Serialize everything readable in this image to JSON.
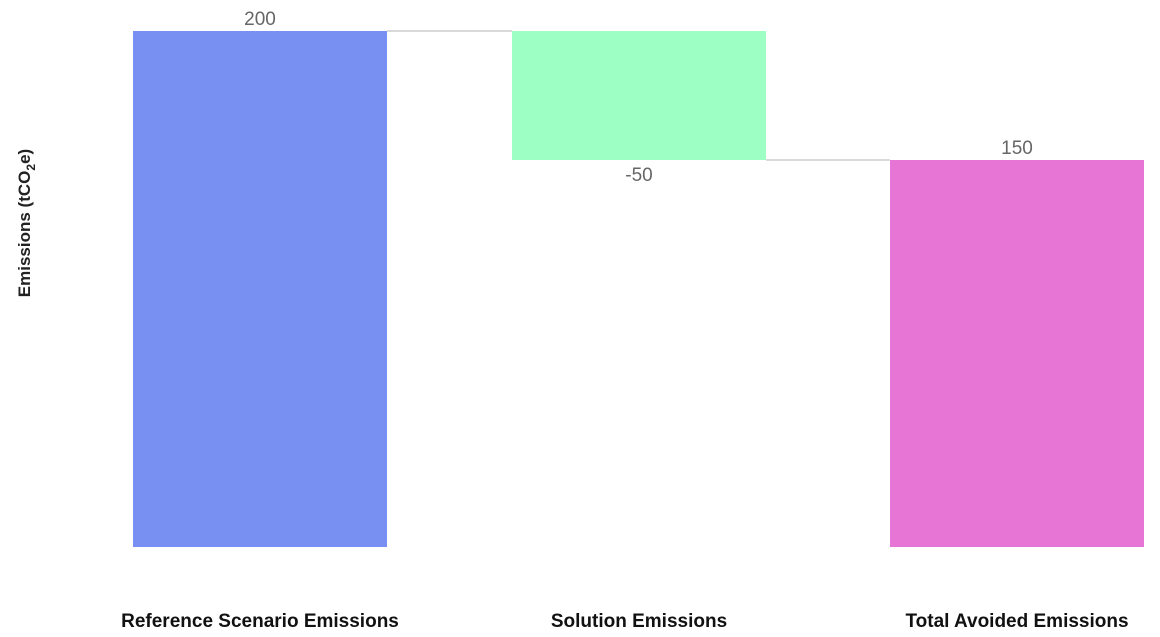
{
  "chart_data": {
    "type": "bar",
    "subtype": "waterfall",
    "ylabel": {
      "prefix": "Emissions (tCO",
      "subscript": "2",
      "suffix": "e)"
    },
    "ylim": [
      0,
      200
    ],
    "categories": [
      "Reference Scenario Emissions",
      "Solution Emissions",
      "Total Avoided Emissions"
    ],
    "values": [
      200,
      -50,
      150
    ],
    "data_labels": [
      "200",
      "-50",
      "150"
    ],
    "colors": [
      "#7890f2",
      "#9dffc3",
      "#e675d6"
    ],
    "connector_color": "#d9d9d9",
    "grid": false,
    "legend": "none"
  }
}
